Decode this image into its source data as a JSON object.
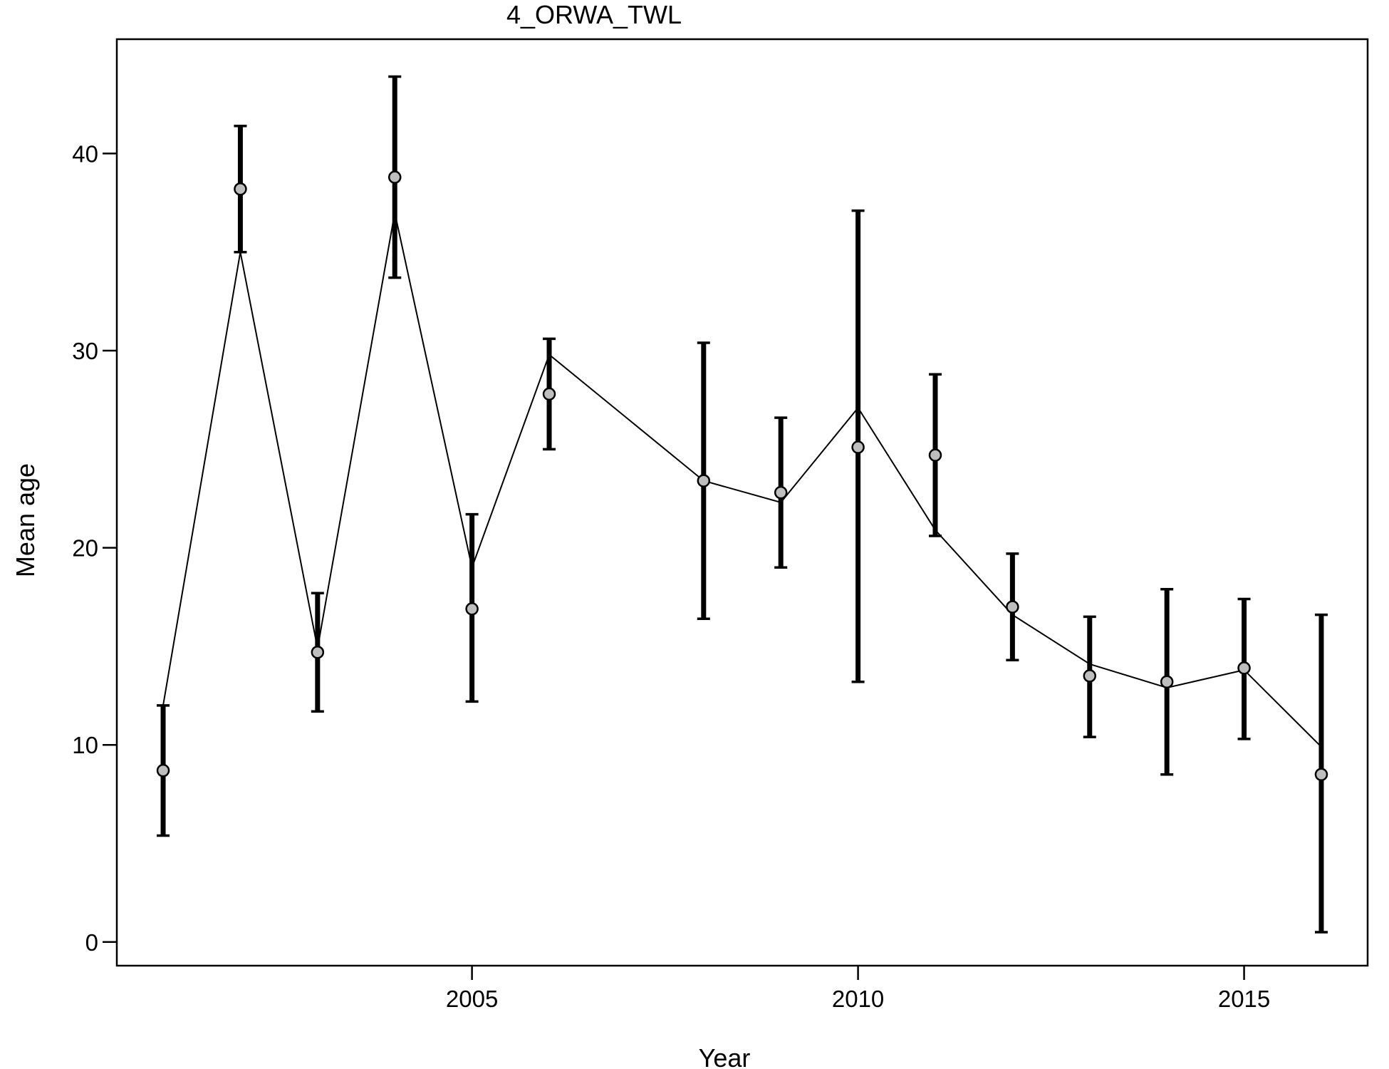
{
  "chart_data": {
    "type": "line",
    "title": "4_ORWA_TWL",
    "xlabel": "Year",
    "ylabel": "Mean age",
    "xlim": [
      2000.4,
      2016.6
    ],
    "ylim": [
      -1.2,
      45.8
    ],
    "x_ticks": [
      2005,
      2010,
      2015
    ],
    "y_ticks": [
      0,
      10,
      20,
      30,
      40
    ],
    "x_tick_labels": [
      "2005",
      "2010",
      "2015"
    ],
    "y_tick_labels": [
      "0",
      "10",
      "20",
      "30",
      "40"
    ],
    "grid": false,
    "legend": "none",
    "observed": [
      {
        "x": 2001,
        "y": 8.7,
        "lo": 5.4,
        "hi": 12.0
      },
      {
        "x": 2002,
        "y": 38.2,
        "lo": 35.0,
        "hi": 41.4
      },
      {
        "x": 2003,
        "y": 14.7,
        "lo": 11.7,
        "hi": 17.7
      },
      {
        "x": 2004,
        "y": 38.8,
        "lo": 33.7,
        "hi": 43.9
      },
      {
        "x": 2005,
        "y": 16.9,
        "lo": 12.2,
        "hi": 21.7
      },
      {
        "x": 2006,
        "y": 27.8,
        "lo": 25.0,
        "hi": 30.6
      },
      {
        "x": 2008,
        "y": 23.4,
        "lo": 16.4,
        "hi": 30.4
      },
      {
        "x": 2009,
        "y": 22.8,
        "lo": 19.0,
        "hi": 26.6
      },
      {
        "x": 2010,
        "y": 25.1,
        "lo": 13.2,
        "hi": 37.1
      },
      {
        "x": 2011,
        "y": 24.7,
        "lo": 20.6,
        "hi": 28.8
      },
      {
        "x": 2012,
        "y": 17.0,
        "lo": 14.3,
        "hi": 19.7
      },
      {
        "x": 2013,
        "y": 13.5,
        "lo": 10.4,
        "hi": 16.5
      },
      {
        "x": 2014,
        "y": 13.2,
        "lo": 8.5,
        "hi": 17.9
      },
      {
        "x": 2015,
        "y": 13.9,
        "lo": 10.3,
        "hi": 17.4
      },
      {
        "x": 2016,
        "y": 8.5,
        "lo": 0.5,
        "hi": 16.6
      }
    ],
    "expected": [
      {
        "x": 2001,
        "y": 12.0
      },
      {
        "x": 2002,
        "y": 35.0
      },
      {
        "x": 2003,
        "y": 14.9
      },
      {
        "x": 2004,
        "y": 37.0
      },
      {
        "x": 2005,
        "y": 19.0
      },
      {
        "x": 2006,
        "y": 29.8
      },
      {
        "x": 2008,
        "y": 23.4
      },
      {
        "x": 2009,
        "y": 22.3
      },
      {
        "x": 2010,
        "y": 27.1
      },
      {
        "x": 2011,
        "y": 20.9
      },
      {
        "x": 2012,
        "y": 16.6
      },
      {
        "x": 2013,
        "y": 14.1
      },
      {
        "x": 2014,
        "y": 12.9
      },
      {
        "x": 2015,
        "y": 13.8
      },
      {
        "x": 2016,
        "y": 9.9
      }
    ],
    "colors": {
      "point_fill": "#bebebe",
      "point_stroke": "#000000",
      "error_bar": "#000000",
      "line": "#000000"
    }
  }
}
